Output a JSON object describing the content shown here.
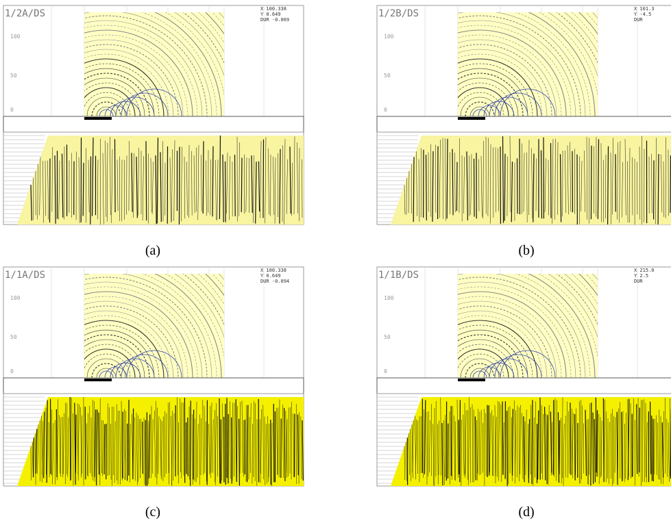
{
  "panels": [
    {
      "label": "(a)",
      "title": "1/2A/DS",
      "y_axis_labels": [
        "100",
        "50",
        "0"
      ],
      "readout": [
        "X 100.338",
        "Y 0.649",
        "DUR -0.069"
      ]
    },
    {
      "label": "(b)",
      "title": "1/2B/DS",
      "y_axis_labels": [
        "100",
        "50",
        "0"
      ],
      "readout": [
        "X 101.3",
        "Y -4.5",
        "DUR"
      ]
    },
    {
      "label": "(c)",
      "title": "1/1A/DS",
      "y_axis_labels": [
        "100",
        "50",
        "0"
      ],
      "readout": [
        "X 100.338",
        "Y 0.649",
        "DUR -0.094"
      ]
    },
    {
      "label": "(d)",
      "title": "1/1B/DS",
      "y_axis_labels": [
        "100",
        "50",
        "0"
      ],
      "readout": [
        "X 215.0",
        "Y 2.5",
        "DUR"
      ]
    }
  ]
}
